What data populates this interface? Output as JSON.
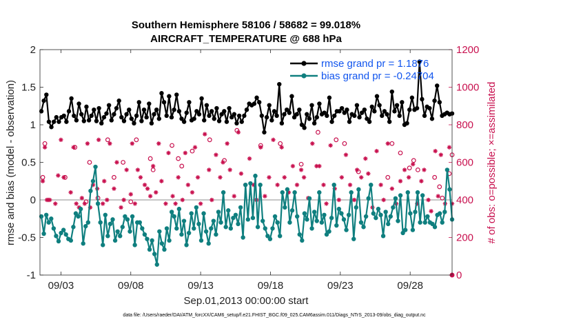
{
  "chart_data": {
    "type": "line",
    "title": "Southern Hemisphere 58106 / 58682 = 99.018%",
    "subtitle": "AIRCRAFT_TEMPERATURE @ 688 hPa",
    "xlabel": "Sep.01,2013 00:00:00 start",
    "ylabel": "rmse and bias (model - observation)",
    "ylabel_right": "# of obs: o=possible; ×=assimilated",
    "footnote": "data file: /Users/raeder/DAI/ATM_forcXX/CAM6_setup/f.e21.FHIST_BGC.f09_025.CAM6assim.011/Diags_NTrS_2013-09/obs_diag_output.nc",
    "xlim": [
      1.5,
      31.0
    ],
    "ylim": [
      -1,
      2
    ],
    "ylim_right": [
      0,
      1200
    ],
    "x_ticks": [
      3,
      8,
      13,
      18,
      23,
      28
    ],
    "x_tick_labels": [
      "09/03",
      "09/08",
      "09/13",
      "09/18",
      "09/23",
      "09/28"
    ],
    "y_ticks": [
      -1,
      -0.5,
      0,
      0.5,
      1,
      1.5,
      2
    ],
    "y_tick_labels": [
      "-1",
      "-0.5",
      "0",
      "0.5",
      "1",
      "1.5",
      "2"
    ],
    "y_ticks_right": [
      0,
      200,
      400,
      600,
      800,
      1000,
      1200
    ],
    "y_tick_labels_right": [
      "0",
      "200",
      "400",
      "600",
      "800",
      "1000",
      "1200"
    ],
    "legend_position": "top-right",
    "colors": {
      "rmse": "#000000",
      "bias": "#0f7f7f",
      "obs": "#c8104e",
      "zero_line": "#b4b4b4"
    },
    "series": [
      {
        "name": "rmse grand pr = 1.1876",
        "legend": "rmse grand pr = 1.1876",
        "axis": "left",
        "values": [
          1.18,
          1.32,
          1.4,
          1.04,
          0.97,
          1.04,
          1.1,
          1.04,
          1.1,
          1.12,
          1.04,
          1.18,
          1.35,
          1.12,
          1.06,
          1.28,
          1.14,
          1.05,
          1.24,
          1.06,
          1.12,
          1.2,
          1.05,
          1.22,
          1.02,
          1.1,
          1.15,
          1.26,
          1.06,
          1.14,
          1.22,
          1.32,
          1.1,
          1.05,
          1.14,
          1.2,
          1.08,
          1.02,
          1.12,
          1.3,
          1.05,
          1.2,
          1.1,
          1.28,
          1.02,
          1.14,
          1.2,
          1.08,
          1.42,
          1.3,
          1.12,
          1.38,
          1.1,
          1.2,
          1.4,
          1.18,
          1.08,
          1.04,
          1.16,
          1.3,
          1.06,
          1.08,
          1.18,
          1.14,
          1.35,
          1.06,
          1.26,
          1.12,
          1.18,
          1.08,
          1.22,
          1.05,
          1.14,
          1.18,
          1.04,
          1.22,
          1.1,
          1.14,
          1.02,
          1.12,
          1.04,
          1.12,
          1.2,
          1.28,
          1.26,
          1.28,
          1.36,
          1.3,
          1.12,
          0.9,
          1.1,
          1.26,
          1.06,
          1.18,
          1.12,
          1.54,
          1.02,
          1.14,
          1.2,
          1.16,
          1.38,
          1.1,
          1.14,
          1.2,
          1.0,
          0.96,
          1.14,
          1.08,
          1.26,
          1.02,
          1.1,
          1.28,
          1.14,
          1.16,
          1.12,
          1.36,
          1.04,
          1.12,
          1.18,
          1.18,
          1.22,
          1.16,
          1.2,
          1.04,
          1.14,
          1.12,
          1.26,
          1.1,
          1.16,
          1.2,
          1.08,
          1.04,
          1.24,
          1.18,
          1.38,
          1.26,
          1.12,
          1.18,
          1.14,
          1.04,
          1.44,
          1.18,
          1.26,
          1.12,
          1.3,
          1.0,
          1.02,
          1.2,
          1.36,
          1.2,
          1.22,
          1.84,
          1.34,
          1.12,
          1.24,
          1.22,
          1.08,
          1.32,
          1.52,
          1.3,
          1.12,
          1.14,
          1.16,
          1.14,
          1.15
        ]
      },
      {
        "name": "bias grand pr = -0.24704",
        "legend": "bias grand pr = -0.24704",
        "axis": "left",
        "values": [
          -0.22,
          -0.45,
          -0.2,
          -0.3,
          -0.25,
          -0.38,
          -0.48,
          -0.55,
          -0.44,
          -0.4,
          -0.46,
          -0.52,
          -0.54,
          -0.36,
          -0.18,
          -0.22,
          -0.12,
          -0.58,
          -0.35,
          -0.3,
          0.12,
          0.25,
          0.44,
          -0.05,
          -0.3,
          -0.6,
          -0.2,
          -0.48,
          -0.32,
          -0.26,
          -0.54,
          -0.42,
          -0.48,
          -0.36,
          -0.22,
          -0.26,
          -0.42,
          -0.22,
          -0.6,
          -0.3,
          -0.3,
          -0.38,
          -0.46,
          -0.52,
          -0.66,
          -0.54,
          -0.72,
          -0.86,
          -0.42,
          -0.58,
          -0.66,
          -0.38,
          -0.54,
          -0.16,
          -0.22,
          -0.38,
          -0.12,
          -0.46,
          -0.28,
          -0.6,
          -0.44,
          -0.18,
          -0.38,
          -0.1,
          -0.32,
          -0.54,
          -0.18,
          -0.42,
          -0.58,
          -0.38,
          -0.28,
          -0.46,
          -0.16,
          -0.3,
          0.1,
          -0.36,
          -0.14,
          -0.38,
          -0.24,
          -0.2,
          -0.32,
          -0.1,
          -0.5,
          0.2,
          -0.26,
          0.22,
          -0.24,
          0.32,
          -0.36,
          0.2,
          -0.28,
          -0.38,
          -0.48,
          -0.52,
          -0.38,
          -0.22,
          -0.3,
          -0.48,
          0.1,
          -0.1,
          0.14,
          -0.3,
          -0.14,
          0.1,
          -0.22,
          -0.46,
          -0.54,
          -0.18,
          -0.26,
          0.02,
          -0.38,
          -0.16,
          -0.28,
          0.1,
          -0.3,
          -0.2,
          -0.46,
          -0.42,
          -0.24,
          0.2,
          -0.34,
          -0.12,
          -0.18,
          -0.26,
          -0.4,
          -0.2,
          0.1,
          -0.52,
          -0.1,
          0.14,
          -0.3,
          -0.36,
          -0.22,
          0.02,
          0.2,
          -0.18,
          -0.24,
          -0.12,
          -0.2,
          -0.48,
          -0.16,
          -0.32,
          -0.22,
          -0.1,
          0.02,
          -0.28,
          0.06,
          -0.44,
          -0.4,
          0.1,
          -0.18,
          -0.4,
          -0.16,
          0.1,
          -0.3,
          0.06,
          -0.3,
          -0.22,
          -0.3,
          -0.32,
          -0.36,
          -0.2,
          -0.18,
          -0.3,
          -0.16,
          0.4,
          0.14,
          -0.26
        ]
      }
    ],
    "obs_possible": [
      [
        1.7,
        520
      ],
      [
        1.85,
        700
      ],
      [
        3.3,
        520
      ],
      [
        4.0,
        680
      ],
      [
        4.8,
        390
      ],
      [
        5.05,
        600
      ],
      [
        5.65,
        410
      ],
      [
        6.35,
        720
      ],
      [
        6.8,
        520
      ],
      [
        7.45,
        600
      ],
      [
        8.0,
        390
      ],
      [
        8.4,
        720
      ],
      [
        9.4,
        620
      ],
      [
        9.6,
        560
      ],
      [
        10.95,
        690
      ],
      [
        11.4,
        620
      ],
      [
        11.65,
        580
      ],
      [
        12.4,
        660
      ],
      [
        13.65,
        720
      ],
      [
        14.7,
        610
      ],
      [
        15.6,
        770
      ],
      [
        17.3,
        690
      ],
      [
        18.7,
        700
      ],
      [
        20.2,
        590
      ],
      [
        21.4,
        760
      ],
      [
        22.7,
        720
      ],
      [
        23.3,
        700
      ],
      [
        24.3,
        550
      ],
      [
        26.4,
        520
      ],
      [
        26.7,
        700
      ],
      [
        27.3,
        650
      ],
      [
        27.95,
        570
      ],
      [
        28.25,
        610
      ],
      [
        28.55,
        560
      ],
      [
        29.75,
        520
      ],
      [
        30.1,
        470
      ],
      [
        30.3,
        410
      ],
      [
        30.8,
        540
      ],
      [
        31.0,
        640
      ]
    ],
    "obs_assimilated": [
      [
        1.7,
        500
      ],
      [
        1.85,
        680
      ],
      [
        2.0,
        400
      ],
      [
        2.1,
        400
      ],
      [
        2.2,
        400
      ],
      [
        2.6,
        380
      ],
      [
        2.8,
        530
      ],
      [
        3.0,
        720
      ],
      [
        3.2,
        520
      ],
      [
        3.7,
        440
      ],
      [
        3.9,
        680
      ],
      [
        4.1,
        380
      ],
      [
        4.3,
        360
      ],
      [
        4.5,
        410
      ],
      [
        4.7,
        380
      ],
      [
        4.9,
        700
      ],
      [
        5.1,
        360
      ],
      [
        5.3,
        480
      ],
      [
        5.6,
        460
      ],
      [
        5.7,
        720
      ],
      [
        6.0,
        380
      ],
      [
        6.1,
        500
      ],
      [
        6.3,
        400
      ],
      [
        6.5,
        700
      ],
      [
        6.8,
        460
      ],
      [
        7.0,
        600
      ],
      [
        7.3,
        360
      ],
      [
        7.5,
        400
      ],
      [
        7.7,
        560
      ],
      [
        8.0,
        430
      ],
      [
        8.1,
        700
      ],
      [
        8.3,
        380
      ],
      [
        8.5,
        560
      ],
      [
        8.7,
        520
      ],
      [
        9.0,
        480
      ],
      [
        9.2,
        460
      ],
      [
        9.4,
        420
      ],
      [
        9.6,
        580
      ],
      [
        9.8,
        440
      ],
      [
        10.0,
        700
      ],
      [
        10.2,
        500
      ],
      [
        10.5,
        380
      ],
      [
        10.7,
        650
      ],
      [
        11.0,
        420
      ],
      [
        11.2,
        380
      ],
      [
        11.4,
        520
      ],
      [
        11.7,
        400
      ],
      [
        11.9,
        650
      ],
      [
        12.1,
        480
      ],
      [
        12.4,
        440
      ],
      [
        12.6,
        680
      ],
      [
        12.8,
        520
      ],
      [
        13.0,
        380
      ],
      [
        13.3,
        750
      ],
      [
        13.6,
        560
      ],
      [
        13.8,
        400
      ],
      [
        14.1,
        640
      ],
      [
        14.4,
        520
      ],
      [
        14.6,
        600
      ],
      [
        14.9,
        700
      ],
      [
        15.1,
        560
      ],
      [
        15.4,
        420
      ],
      [
        15.7,
        760
      ],
      [
        15.9,
        540
      ],
      [
        16.2,
        480
      ],
      [
        16.5,
        620
      ],
      [
        16.8,
        480
      ],
      [
        17.0,
        400
      ],
      [
        17.3,
        680
      ],
      [
        17.6,
        420
      ],
      [
        17.9,
        520
      ],
      [
        18.2,
        720
      ],
      [
        18.5,
        480
      ],
      [
        18.8,
        680
      ],
      [
        19.0,
        520
      ],
      [
        19.3,
        440
      ],
      [
        19.6,
        580
      ],
      [
        19.9,
        480
      ],
      [
        20.2,
        560
      ],
      [
        20.4,
        520
      ],
      [
        20.7,
        410
      ],
      [
        21.0,
        700
      ],
      [
        21.3,
        580
      ],
      [
        21.5,
        580
      ],
      [
        21.8,
        480
      ],
      [
        22.0,
        380
      ],
      [
        22.3,
        690
      ],
      [
        22.6,
        460
      ],
      [
        22.9,
        400
      ],
      [
        23.1,
        520
      ],
      [
        23.4,
        640
      ],
      [
        23.7,
        480
      ],
      [
        24.0,
        400
      ],
      [
        24.2,
        560
      ],
      [
        24.5,
        520
      ],
      [
        24.8,
        620
      ],
      [
        25.0,
        540
      ],
      [
        25.3,
        360
      ],
      [
        25.6,
        660
      ],
      [
        25.9,
        480
      ],
      [
        26.1,
        400
      ],
      [
        26.4,
        700
      ],
      [
        26.7,
        460
      ],
      [
        27.0,
        380
      ],
      [
        27.3,
        500
      ],
      [
        27.6,
        560
      ],
      [
        27.9,
        520
      ],
      [
        28.2,
        590
      ],
      [
        28.5,
        380
      ],
      [
        28.8,
        500
      ],
      [
        29.0,
        560
      ],
      [
        29.3,
        400
      ],
      [
        29.5,
        340
      ],
      [
        29.8,
        660
      ],
      [
        30.0,
        420
      ],
      [
        30.2,
        640
      ],
      [
        30.5,
        380
      ],
      [
        30.8,
        680
      ],
      [
        31.0,
        380
      ]
    ]
  }
}
